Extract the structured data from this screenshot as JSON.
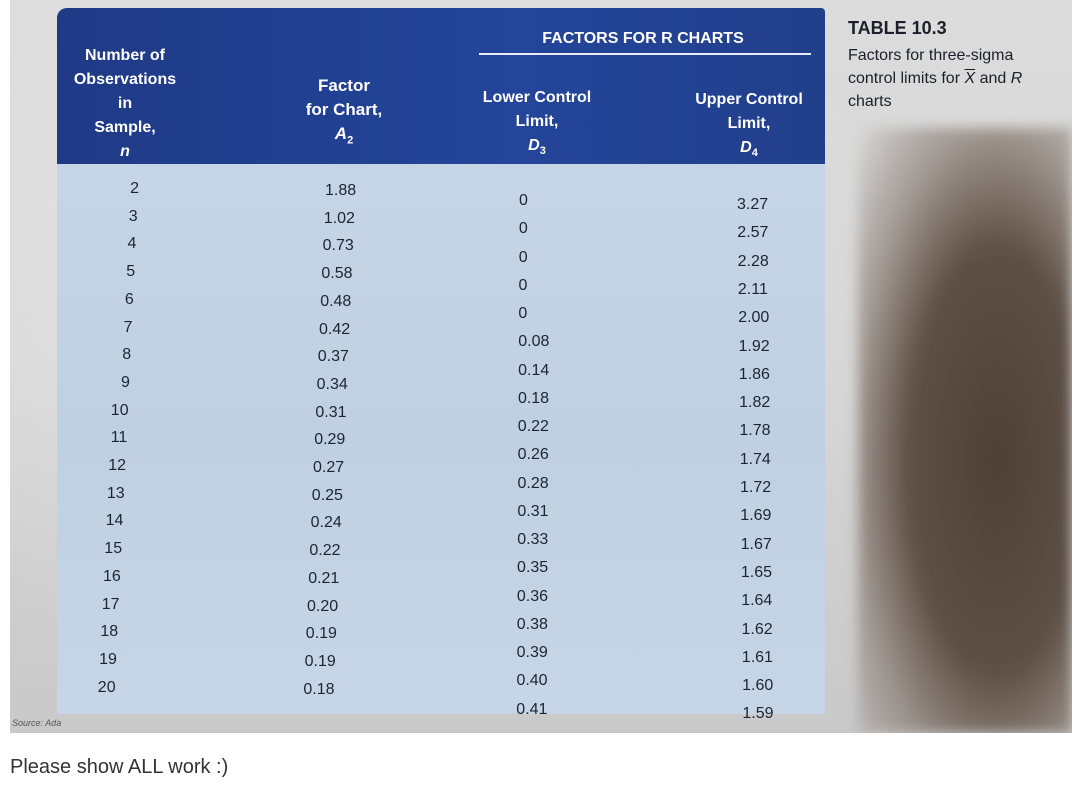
{
  "table": {
    "headers": {
      "col_n": [
        "Number of",
        "Observations in",
        "Sample,",
        "n"
      ],
      "col_a2": [
        "Factor",
        "for Chart,",
        "A",
        "2"
      ],
      "group": "FACTORS FOR R CHARTS",
      "col_d3": [
        "Lower Control",
        "Limit,",
        "D",
        "3"
      ],
      "col_d4": [
        "Upper Control",
        "Limit,",
        "D",
        "4"
      ]
    },
    "rows": [
      {
        "n": "2",
        "a2": "1.88",
        "d3": "0",
        "d4": "3.27"
      },
      {
        "n": "3",
        "a2": "1.02",
        "d3": "0",
        "d4": "2.57"
      },
      {
        "n": "4",
        "a2": "0.73",
        "d3": "0",
        "d4": "2.28"
      },
      {
        "n": "5",
        "a2": "0.58",
        "d3": "0",
        "d4": "2.11"
      },
      {
        "n": "6",
        "a2": "0.48",
        "d3": "0",
        "d4": "2.00"
      },
      {
        "n": "7",
        "a2": "0.42",
        "d3": "0.08",
        "d4": "1.92"
      },
      {
        "n": "8",
        "a2": "0.37",
        "d3": "0.14",
        "d4": "1.86"
      },
      {
        "n": "9",
        "a2": "0.34",
        "d3": "0.18",
        "d4": "1.82"
      },
      {
        "n": "10",
        "a2": "0.31",
        "d3": "0.22",
        "d4": "1.78"
      },
      {
        "n": "11",
        "a2": "0.29",
        "d3": "0.26",
        "d4": "1.74"
      },
      {
        "n": "12",
        "a2": "0.27",
        "d3": "0.28",
        "d4": "1.72"
      },
      {
        "n": "13",
        "a2": "0.25",
        "d3": "0.31",
        "d4": "1.69"
      },
      {
        "n": "14",
        "a2": "0.24",
        "d3": "0.33",
        "d4": "1.67"
      },
      {
        "n": "15",
        "a2": "0.22",
        "d3": "0.35",
        "d4": "1.65"
      },
      {
        "n": "16",
        "a2": "0.21",
        "d3": "0.36",
        "d4": "1.64"
      },
      {
        "n": "17",
        "a2": "0.20",
        "d3": "0.38",
        "d4": "1.62"
      },
      {
        "n": "18",
        "a2": "0.19",
        "d3": "0.39",
        "d4": "1.61"
      },
      {
        "n": "19",
        "a2": "0.19",
        "d3": "0.40",
        "d4": "1.60"
      },
      {
        "n": "20",
        "a2": "0.18",
        "d3": "0.41",
        "d4": "1.59"
      }
    ]
  },
  "caption": {
    "title": "TABLE 10.3",
    "line1": "Factors for three-sigma",
    "line2_pre": "control limits for ",
    "line2_xbar": "X",
    "line2_mid": " and ",
    "line2_r": "R",
    "line3": "charts"
  },
  "source_text": "Source: Ada",
  "question": "Please show ALL work :)",
  "colors": {
    "header_bg": "#213f8b",
    "body_bg": "#c3d3e4"
  }
}
